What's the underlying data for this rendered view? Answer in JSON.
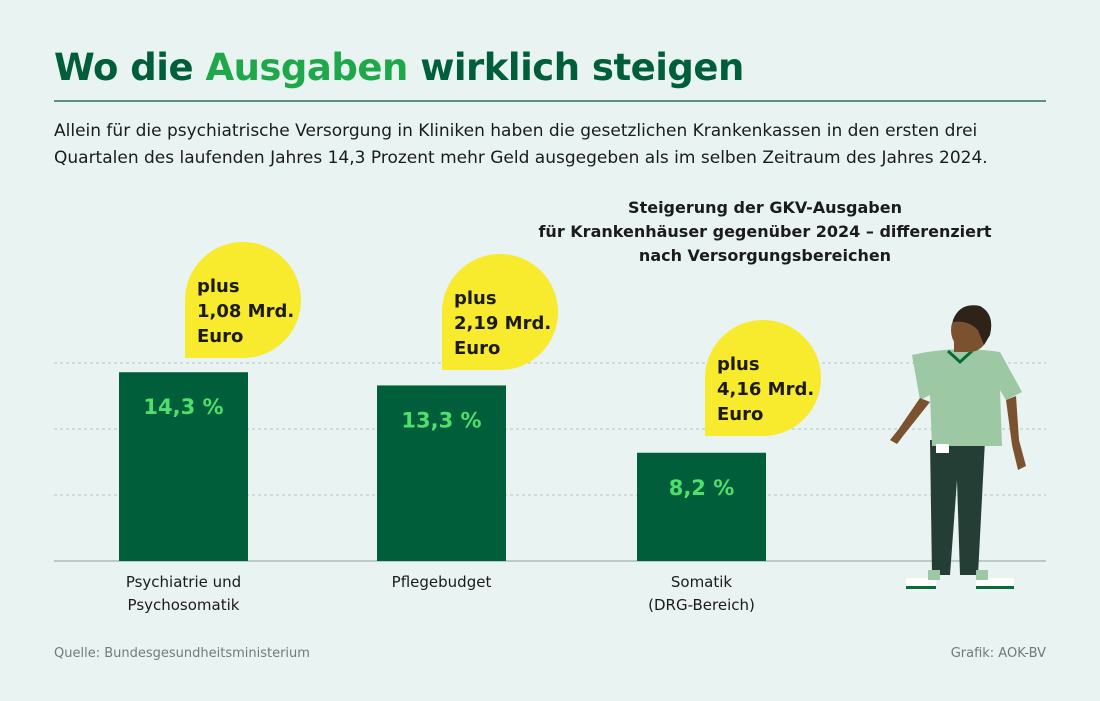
{
  "title": {
    "part1": "Wo die ",
    "highlight": "Ausgaben",
    "part2": " wirklich steigen"
  },
  "intro": "Allein für die psychiatrische Versorgung in Kliniken haben die gesetzlichen Krankenkassen in den ersten drei Quartalen des laufenden Jahres 14,3 Prozent mehr Geld ausgegeben als im selben Zeitraum des Jahres 2024.",
  "chart_data": {
    "type": "bar",
    "title": [
      "Steigerung der GKV-Ausgaben",
      "für Krankenhäuser gegenüber 2024 – differenziert",
      "nach Versorgungsbereichen"
    ],
    "categories": [
      [
        "Psychiatrie und",
        "Psychosomatik"
      ],
      [
        "Pflegebudget"
      ],
      [
        "Somatik",
        "(DRG-Bereich)"
      ]
    ],
    "values": [
      14.3,
      13.3,
      8.2
    ],
    "data_labels": [
      "14,3 %",
      "13,3 %",
      "8,2 %"
    ],
    "annotations": [
      [
        "plus",
        "1,08 Mrd.",
        "Euro"
      ],
      [
        "plus",
        "2,19 Mrd.",
        "Euro"
      ],
      [
        "plus",
        "4,16 Mrd.",
        "Euro"
      ]
    ],
    "ylim": [
      0,
      15
    ],
    "gridlines": [
      5,
      10,
      15
    ],
    "grid": true,
    "colors": {
      "bar": "#005e3a",
      "label": "#4ee06a",
      "bubble": "#f8ea2c"
    }
  },
  "footer": {
    "source": "Quelle: Bundesgesundheitsministerium",
    "credit": "Grafik: AOK-BV"
  }
}
